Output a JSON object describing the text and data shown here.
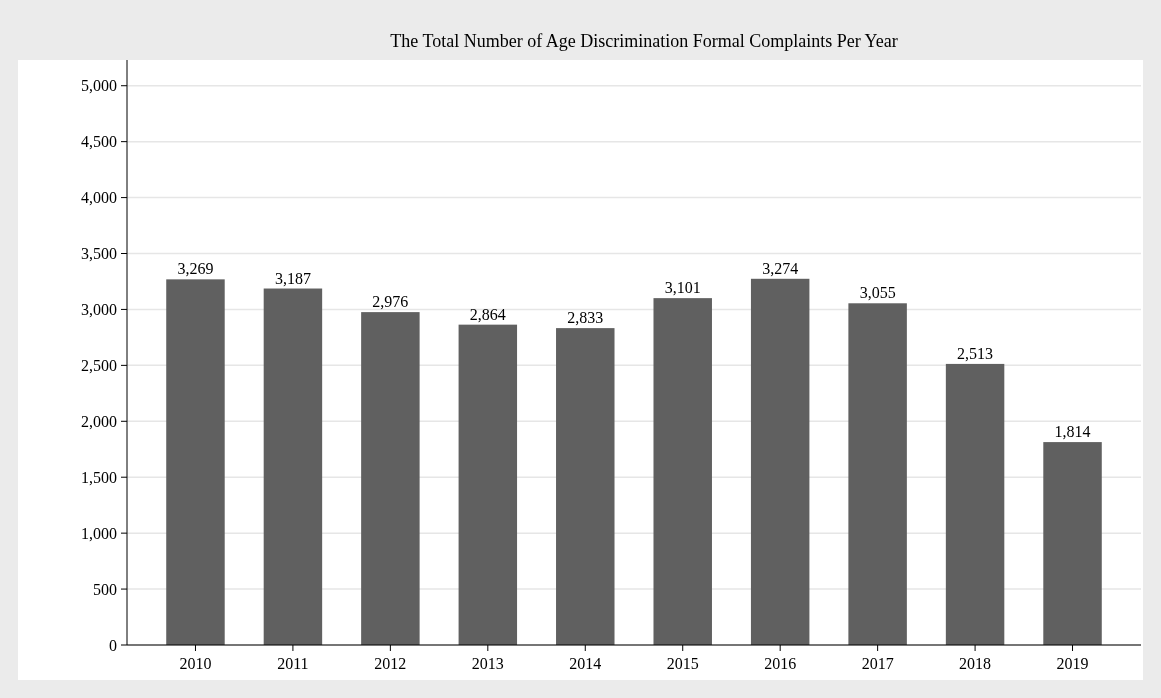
{
  "chart_data": {
    "type": "bar",
    "title": "The Total Number of Age Discrimination Formal Complaints Per Year",
    "categories": [
      "2010",
      "2011",
      "2012",
      "2013",
      "2014",
      "2015",
      "2016",
      "2017",
      "2018",
      "2019"
    ],
    "values": [
      3269,
      3187,
      2976,
      2864,
      2833,
      3101,
      3274,
      3055,
      2513,
      1814
    ],
    "value_labels": [
      "3,269",
      "3,187",
      "2,976",
      "2,864",
      "2,833",
      "3,101",
      "3,274",
      "3,055",
      "2,513",
      "1,814"
    ],
    "color": "#606060",
    "ylim": [
      0,
      5230
    ],
    "yticks": [
      0,
      500,
      {
        "value": 1000,
        "label": "1,000"
      },
      {
        "value": 1500,
        "label": "1,500"
      },
      {
        "value": 2000,
        "label": "2,000"
      },
      {
        "value": 2500,
        "label": "2,500"
      },
      {
        "value": 3000,
        "label": "3,000"
      },
      {
        "value": 3500,
        "label": "3,500"
      },
      {
        "value": 4000,
        "label": "4,000"
      },
      {
        "value": 4500,
        "label": "4,500"
      },
      {
        "value": 5000,
        "label": "5,000"
      }
    ],
    "grid": "y"
  }
}
